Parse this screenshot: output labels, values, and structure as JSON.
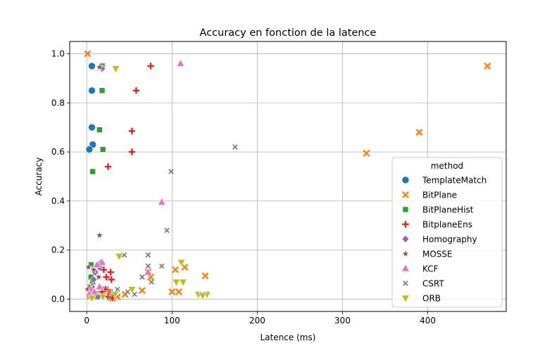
{
  "chart_data": {
    "type": "scatter",
    "title": "Accuracy en fonction de la latence",
    "xlabel": "Latence (ms)",
    "ylabel": "Accuracy",
    "xlim": [
      -20,
      492
    ],
    "ylim": [
      -0.05,
      1.05
    ],
    "xticks": [
      0,
      100,
      200,
      300,
      400
    ],
    "yticks": [
      0.0,
      0.2,
      0.4,
      0.6,
      0.8,
      1.0
    ],
    "xtick_labels": [
      "0",
      "100",
      "200",
      "300",
      "400"
    ],
    "ytick_labels": [
      "0.0",
      "0.2",
      "0.4",
      "0.6",
      "0.8",
      "1.0"
    ],
    "grid": true,
    "legend": {
      "title": "method",
      "placement": "center-right"
    },
    "series": [
      {
        "name": "TemplateMatch",
        "marker": "circle",
        "color": "#1f77b4",
        "points": [
          [
            6,
            0.95
          ],
          [
            6,
            0.85
          ],
          [
            6,
            0.7
          ],
          [
            7,
            0.63
          ],
          [
            3,
            0.61
          ]
        ]
      },
      {
        "name": "BitPlane",
        "marker": "x",
        "color": "#ff7f0e",
        "points": [
          [
            1,
            1.0
          ],
          [
            470,
            0.95
          ],
          [
            390,
            0.68
          ],
          [
            328,
            0.595
          ],
          [
            139,
            0.095
          ],
          [
            115,
            0.13
          ],
          [
            104,
            0.12
          ],
          [
            108,
            0.03
          ],
          [
            100,
            0.03
          ],
          [
            65,
            0.035
          ],
          [
            72,
            0.11
          ],
          [
            75,
            0.09
          ],
          [
            36,
            0.01
          ],
          [
            22,
            0.04
          ],
          [
            25,
            0.03
          ],
          [
            18,
            0.02
          ],
          [
            10,
            0.02
          ],
          [
            3,
            0.01
          ],
          [
            30,
            0.005
          ],
          [
            45,
            0.02
          ]
        ]
      },
      {
        "name": "BitPlaneHist",
        "marker": "square",
        "color": "#2ca02c",
        "points": [
          [
            18,
            0.95
          ],
          [
            18,
            0.85
          ],
          [
            15,
            0.69
          ],
          [
            19,
            0.61
          ],
          [
            7,
            0.52
          ],
          [
            5,
            0.14
          ],
          [
            5,
            0.09
          ],
          [
            7,
            0.07
          ],
          [
            4,
            0.05
          ],
          [
            6,
            0.03
          ]
        ]
      },
      {
        "name": "BitplaneEns",
        "marker": "plus",
        "color": "#d62728",
        "points": [
          [
            75,
            0.95
          ],
          [
            58,
            0.85
          ],
          [
            53,
            0.685
          ],
          [
            53,
            0.6
          ],
          [
            25,
            0.54
          ],
          [
            20,
            0.12
          ],
          [
            28,
            0.11
          ],
          [
            23,
            0.09
          ],
          [
            29,
            0.08
          ],
          [
            22,
            0.04
          ],
          [
            25,
            0.01
          ],
          [
            30,
            0.005
          ],
          [
            18,
            0.03
          ]
        ]
      },
      {
        "name": "Homography",
        "marker": "diamond",
        "color": "#9467bd",
        "points": [
          [
            18,
            0.94
          ],
          [
            17,
            0.15
          ],
          [
            10,
            0.11
          ],
          [
            15,
            0.13
          ],
          [
            8,
            0.08
          ],
          [
            6,
            0.05
          ],
          [
            4,
            0.03
          ],
          [
            13,
            0.01
          ]
        ]
      },
      {
        "name": "MOSSE",
        "marker": "star",
        "color": "#8c564b",
        "points": [
          [
            15,
            0.945
          ],
          [
            15,
            0.26
          ],
          [
            2,
            0.13
          ],
          [
            14,
            0.09
          ],
          [
            8,
            0.12
          ],
          [
            3,
            0.05
          ],
          [
            1,
            0.04
          ],
          [
            2,
            0.01
          ],
          [
            6,
            0.005
          ]
        ]
      },
      {
        "name": "KCF",
        "marker": "triangle-up",
        "color": "#e377c2",
        "points": [
          [
            110,
            0.96
          ],
          [
            88,
            0.395
          ],
          [
            72,
            0.11
          ],
          [
            18,
            0.15
          ],
          [
            12,
            0.14
          ],
          [
            5,
            0.04
          ],
          [
            9,
            0.03
          ],
          [
            15,
            0.05
          ],
          [
            3,
            0.02
          ]
        ]
      },
      {
        "name": "CSRT",
        "marker": "x-small",
        "color": "#7f7f7f",
        "points": [
          [
            174,
            0.62
          ],
          [
            99,
            0.52
          ],
          [
            94,
            0.28
          ],
          [
            72,
            0.18
          ],
          [
            44,
            0.18
          ],
          [
            88,
            0.135
          ],
          [
            72,
            0.135
          ],
          [
            65,
            0.09
          ],
          [
            76,
            0.07
          ],
          [
            48,
            0.03
          ],
          [
            56,
            0.02
          ],
          [
            36,
            0.04
          ],
          [
            28,
            0.03
          ],
          [
            12,
            0.01
          ]
        ]
      },
      {
        "name": "ORB",
        "marker": "triangle-down",
        "color": "#bcbd22",
        "points": [
          [
            34,
            0.94
          ],
          [
            38,
            0.175
          ],
          [
            111,
            0.15
          ],
          [
            113,
            0.07
          ],
          [
            105,
            0.07
          ],
          [
            131,
            0.02
          ],
          [
            141,
            0.02
          ],
          [
            136,
            0.015
          ],
          [
            53,
            0.04
          ],
          [
            33,
            0.02
          ],
          [
            6,
            0.005
          ],
          [
            19,
            0.01
          ]
        ]
      }
    ]
  }
}
